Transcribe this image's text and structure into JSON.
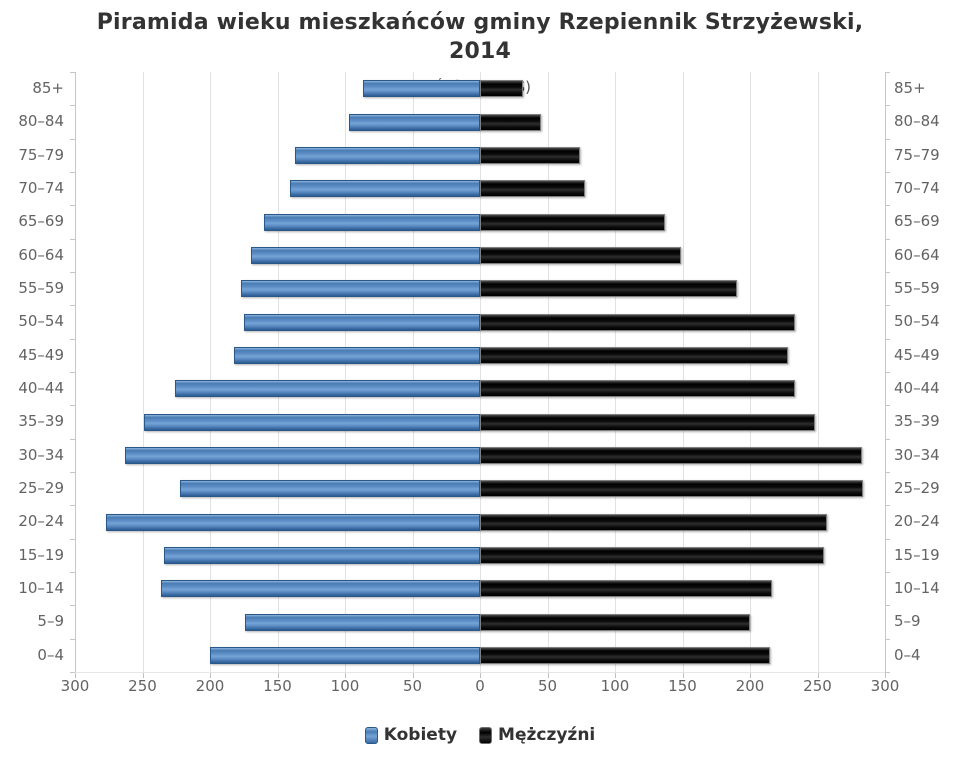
{
  "chart_data": {
    "type": "bar",
    "variant": "population-pyramid",
    "title": "Piramida wieku mieszkańców gminy Rzepiennik Strzyżewski, 2014",
    "subtitle": "(Źródło: GUS)",
    "category_order": "oldest-at-top",
    "categories": [
      "85+",
      "80–84",
      "75–79",
      "70–74",
      "65–69",
      "60–64",
      "55–59",
      "50–54",
      "45–49",
      "40–44",
      "35–39",
      "30–34",
      "25–29",
      "20–24",
      "15–19",
      "10–14",
      "5–9",
      "0–4"
    ],
    "series": [
      {
        "name": "Kobiety",
        "side": "left",
        "color": "#4779b2",
        "values": [
          87,
          97,
          137,
          141,
          160,
          170,
          177,
          175,
          182,
          226,
          249,
          263,
          222,
          277,
          234,
          236,
          174,
          200
        ]
      },
      {
        "name": "Mężczyźni",
        "side": "right",
        "color": "#141414",
        "values": [
          32,
          45,
          74,
          78,
          137,
          149,
          190,
          233,
          228,
          233,
          248,
          283,
          284,
          257,
          255,
          216,
          200,
          215
        ]
      }
    ],
    "x_tick_labels": [
      "300",
      "250",
      "200",
      "150",
      "100",
      "50",
      "0",
      "50",
      "100",
      "150",
      "200",
      "250",
      "300"
    ],
    "x_max_each_side": 300,
    "grid": true,
    "legend_position": "bottom",
    "colors": {
      "grid_line": "#e2e2e2",
      "axis_line": "#c6c6c6",
      "axis_label": "#636363",
      "title_text": "#333333",
      "subtitle_text": "#555555"
    }
  }
}
